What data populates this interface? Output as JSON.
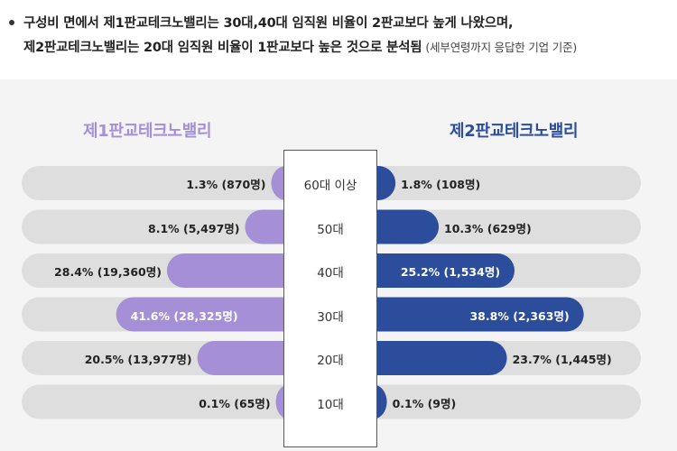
{
  "header": {
    "line1": "구성비 면에서 제1판교테크노밸리는 30대,40대 임직원 비율이 2판교보다 높게 나왔으며,",
    "line2": "제2판교테크노밸리는 20대 임직원 비율이 1판교보다 높은 것으로 분석됨",
    "note": "(세부연령까지 응답한 기업 기준)"
  },
  "chart_data": {
    "type": "bar",
    "categories": [
      "60대 이상",
      "50대",
      "40대",
      "30대",
      "20대",
      "10대"
    ],
    "xlim": [
      0,
      50
    ],
    "series": [
      {
        "name": "제1판교테크노밸리",
        "color": "#a58fd6",
        "values": [
          1.3,
          8.1,
          28.4,
          41.6,
          20.5,
          0.1
        ],
        "labels": [
          "1.3% (870명)",
          "8.1% (5,497명)",
          "28.4% (19,360명)",
          "41.6% (28,325명)",
          "20.5% (13,977명)",
          "0.1% (65명)"
        ]
      },
      {
        "name": "제2판교테크노밸리",
        "color": "#2b4d9b",
        "values": [
          1.8,
          10.3,
          25.2,
          38.8,
          23.7,
          0.1
        ],
        "labels": [
          "1.8% (108명)",
          "10.3% (629명)",
          "25.2% (1,534명)",
          "38.8% (2,363명)",
          "23.7% (1,445명)",
          "0.1% (9명)"
        ]
      }
    ],
    "track_color": "#dedede",
    "legend": "top"
  }
}
